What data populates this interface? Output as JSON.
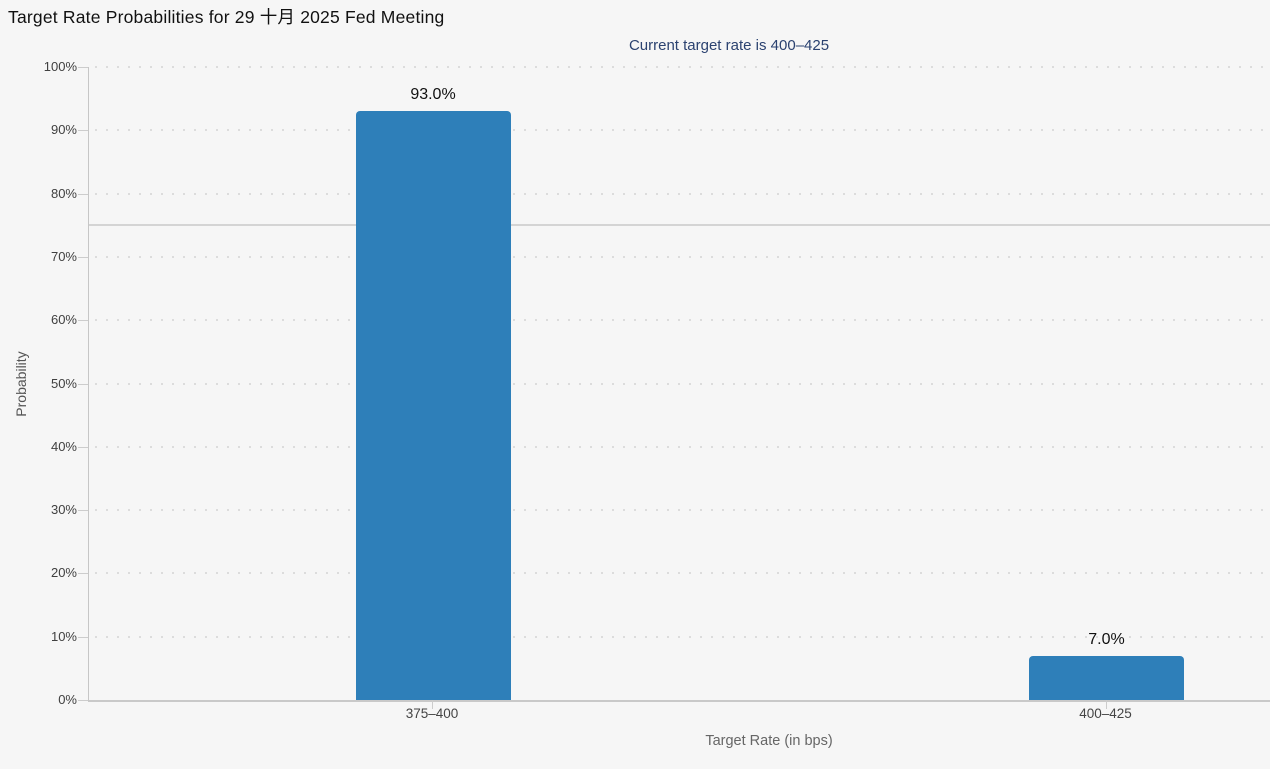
{
  "chart_data": {
    "type": "bar",
    "title": "Target Rate Probabilities for 29 十月 2025 Fed Meeting",
    "subtitle": "Current target rate is 400–425",
    "categories": [
      "375–400",
      "400–425"
    ],
    "values": [
      93.0,
      7.0
    ],
    "value_labels": [
      "93.0%",
      "7.0%"
    ],
    "xlabel": "Target Rate (in bps)",
    "ylabel": "Probability",
    "ylim": [
      0,
      100
    ],
    "ytick_labels": [
      "0%",
      "10%",
      "20%",
      "30%",
      "40%",
      "50%",
      "60%",
      "70%",
      "80%",
      "90%",
      "100%"
    ],
    "reference_line": 75,
    "grid": "horizontal-dotted",
    "legend_position": "none"
  },
  "colors": {
    "background": "#f6f6f6",
    "bar": "#2e7fb9",
    "title": "#111111",
    "subtitle": "#2b4270",
    "axis_line": "#c6c6c6",
    "grid_dot": "#dcdcdc",
    "reference_line": "#d4d4d4",
    "tick_label": "#404040",
    "axis_title": "#666666",
    "value_label": "#111111"
  }
}
